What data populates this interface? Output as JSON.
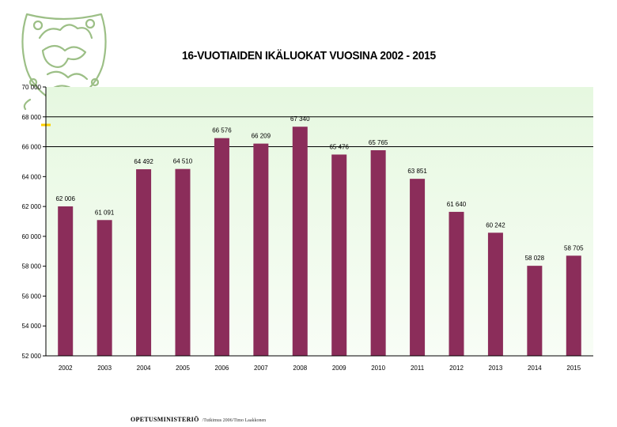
{
  "page": {
    "footer_ministry": "OPETUSMINISTERIÖ",
    "footer_credit": "/Tutkimus 2006/Timo Laakkonen"
  },
  "colors": {
    "bar": "#8b2d5a",
    "plot_background_top": "#e6f8e0",
    "plot_background_bottom": "#f8fdf6",
    "logo": "#9cbf86",
    "accent_line": "#ffd200"
  },
  "icons": {
    "logo": "coat-of-arms-lion-icon"
  },
  "chart_data": {
    "type": "bar",
    "title": "16-VUOTIAIDEN IKÄLUOKAT VUOSINA 2002 - 2015",
    "xlabel": "",
    "ylabel": "",
    "categories": [
      "2002",
      "2003",
      "2004",
      "2005",
      "2006",
      "2007",
      "2008",
      "2009",
      "2010",
      "2011",
      "2012",
      "2013",
      "2014",
      "2015"
    ],
    "values": [
      62006,
      61091,
      64492,
      64510,
      66576,
      66209,
      67340,
      65476,
      65765,
      63851,
      61640,
      60242,
      58028,
      58705
    ],
    "value_labels": [
      "62 006",
      "61 091",
      "64 492",
      "64 510",
      "66 576",
      "66 209",
      "67 340",
      "65 476",
      "65 765",
      "63 851",
      "61 640",
      "60 242",
      "58 028",
      "58 705"
    ],
    "ylim": [
      52000,
      70000
    ],
    "yticks": [
      52000,
      54000,
      56000,
      58000,
      60000,
      62000,
      64000,
      66000,
      68000,
      70000
    ],
    "ytick_labels": [
      "52 000",
      "54 000",
      "56 000",
      "58 000",
      "60 000",
      "62 000",
      "64 000",
      "66 000",
      "68 000",
      "70 000"
    ],
    "horizontal_lines": [
      66000,
      68000
    ],
    "grid": false,
    "legend": "none"
  }
}
